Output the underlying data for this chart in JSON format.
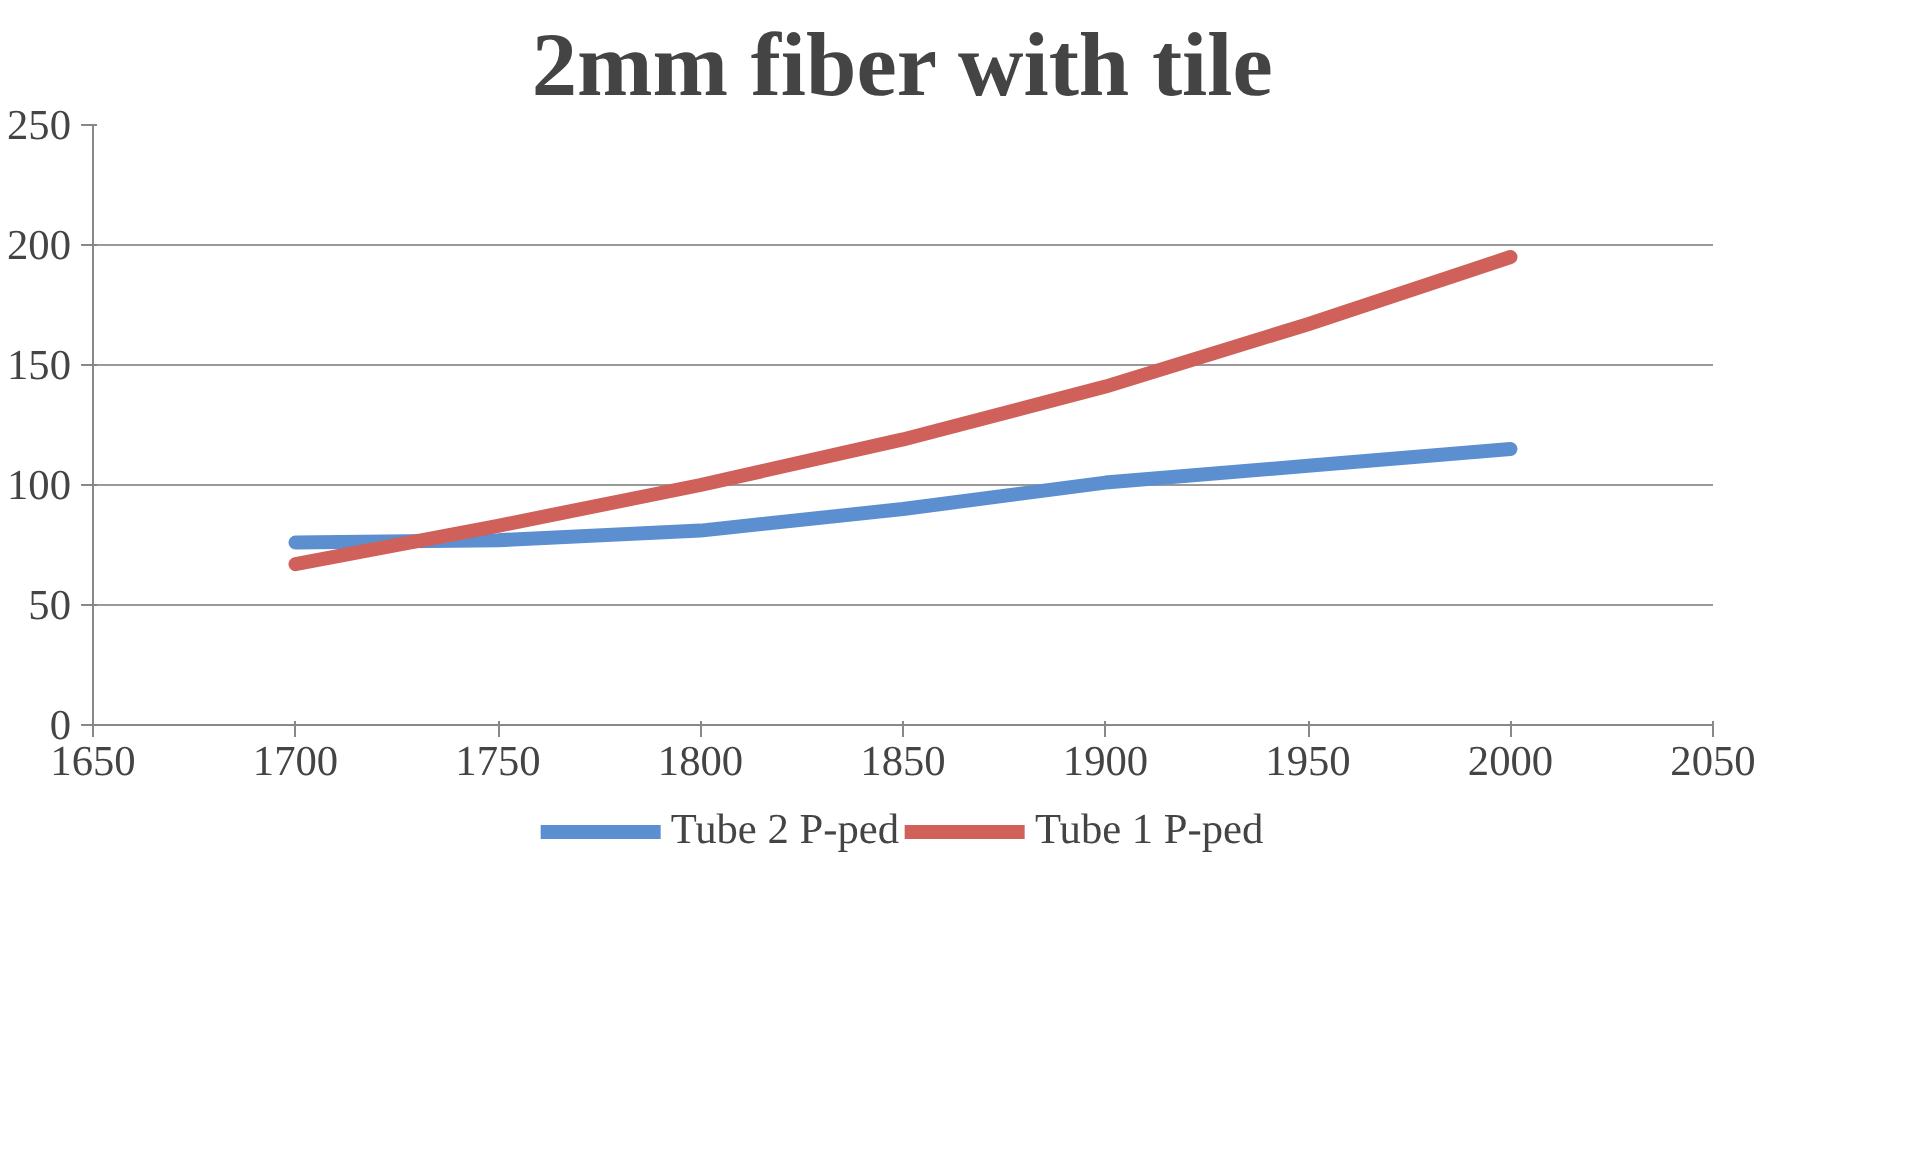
{
  "chart_data": {
    "type": "line",
    "title": "2mm fiber with tile",
    "x": [
      1700,
      1750,
      1800,
      1850,
      1900,
      1950,
      2000
    ],
    "series": [
      {
        "name": "Tube 2 P-ped",
        "color": "#5b8fd0",
        "values": [
          76,
          77,
          81,
          90,
          101,
          108,
          115
        ]
      },
      {
        "name": "Tube 1 P-ped",
        "color": "#d0605a",
        "values": [
          67,
          83,
          100,
          119,
          141,
          167,
          195
        ]
      }
    ],
    "xlim": [
      1650,
      2050
    ],
    "xticks": [
      1650,
      1700,
      1750,
      1800,
      1850,
      1900,
      1950,
      2000,
      2050
    ],
    "ylim": [
      0,
      250
    ],
    "yticks": [
      0,
      50,
      100,
      150,
      200,
      250
    ],
    "grid": "y",
    "legend": "bottom",
    "marker": "none",
    "line_style": "solid"
  }
}
